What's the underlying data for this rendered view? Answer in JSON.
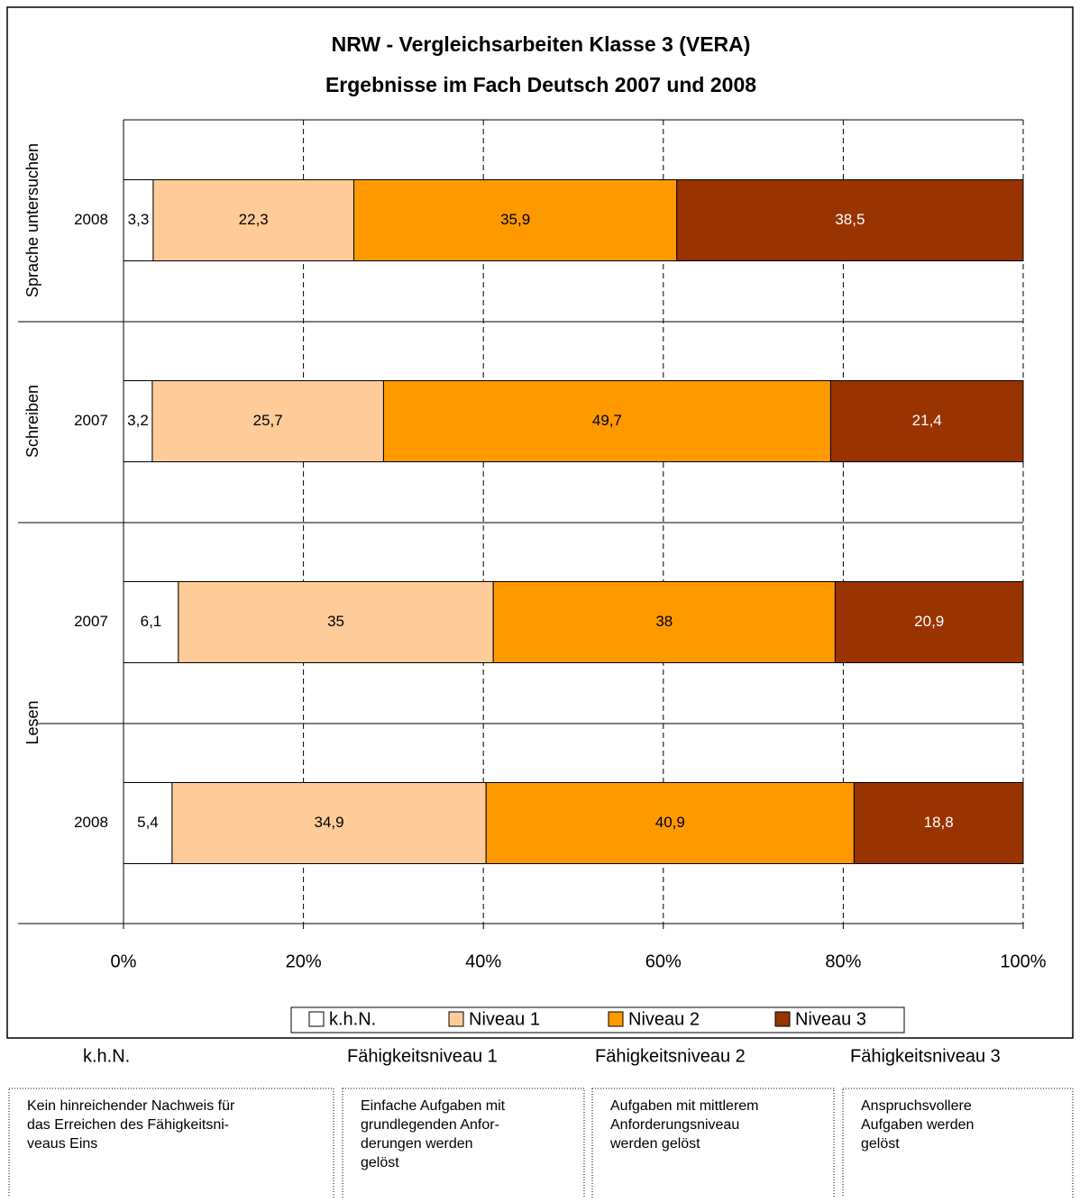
{
  "chart_data": {
    "type": "stacked_barh",
    "title": [
      "NRW - Vergleichsarbeiten Klasse 3 (VERA)",
      "Ergebnisse  im Fach Deutsch 2007 und 2008"
    ],
    "categories": [
      "2008",
      "2007",
      "2007",
      "2008"
    ],
    "group_labels": [
      "Sprache untersuchen",
      "Schreiben",
      "Lesen"
    ],
    "series": [
      {
        "name": "k.h.N.",
        "color": "#ffffff",
        "label_color": "#000000",
        "values": [
          3.3,
          3.2,
          6.1,
          5.4
        ],
        "value_labels": [
          "3,3",
          "3,2",
          "6,1",
          "5,4"
        ]
      },
      {
        "name": "Niveau 1",
        "color": "#ffcc99",
        "label_color": "#000000",
        "values": [
          22.3,
          25.7,
          35,
          34.9
        ],
        "value_labels": [
          "22,3",
          "25,7",
          "35",
          "34,9"
        ]
      },
      {
        "name": "Niveau 2",
        "color": "#ff9900",
        "label_color": "#000000",
        "values": [
          35.9,
          49.7,
          38,
          40.9
        ],
        "value_labels": [
          "35,9",
          "49,7",
          "38",
          "40,9"
        ]
      },
      {
        "name": "Niveau 3",
        "color": "#993300",
        "label_color": "#ffffff",
        "values": [
          38.5,
          21.4,
          20.9,
          18.8
        ],
        "value_labels": [
          "38,5",
          "21,4",
          "20,9",
          "18,8"
        ]
      }
    ],
    "xlim": [
      0,
      100
    ],
    "xticks": [
      {
        "value": 0,
        "label": "0%"
      },
      {
        "value": 20,
        "label": "20%"
      },
      {
        "value": 40,
        "label": "40%"
      },
      {
        "value": 60,
        "label": "60%"
      },
      {
        "value": 80,
        "label": "80%"
      },
      {
        "value": 100,
        "label": "100%"
      }
    ],
    "grid": true
  },
  "descriptions": [
    {
      "heading": "k.h.N.",
      "lines": [
        "Kein hinreichender Nachweis für",
        "das Erreichen des Fähigkeitsni-",
        "veaus Eins"
      ]
    },
    {
      "heading": "Fähigkeitsniveau 1",
      "lines": [
        "Einfache Aufgaben mit",
        "grundlegenden Anfor-",
        "derungen werden",
        "gelöst"
      ]
    },
    {
      "heading": "Fähigkeitsniveau 2",
      "lines": [
        "Aufgaben mit mittlerem",
        "Anforderungsniveau",
        "werden gelöst"
      ]
    },
    {
      "heading": "Fähigkeitsniveau 3",
      "lines": [
        "Anspruchsvollere",
        "Aufgaben werden",
        "gelöst"
      ]
    }
  ]
}
